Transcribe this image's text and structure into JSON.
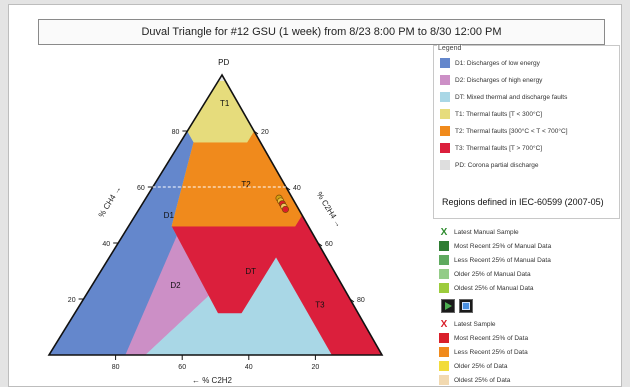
{
  "title": "Duval Triangle for #12 GSU (1 week) from 8/23 8:00 PM to 8/30 12:00 PM",
  "chart_data": {
    "type": "ternary",
    "axes": {
      "left": {
        "label": "% CH4 →",
        "ticks": [
          80,
          60,
          40,
          20
        ]
      },
      "right": {
        "label": "% C2H4 →",
        "ticks": [
          20,
          40,
          60,
          80
        ]
      },
      "bottom": {
        "label": "← % C2H2",
        "ticks": [
          80,
          60,
          40,
          20
        ]
      }
    },
    "zones": [
      {
        "name": "PD",
        "color": "#e6e6e6"
      },
      {
        "name": "T1",
        "color": "#e6dc7c"
      },
      {
        "name": "T2",
        "color": "#f08a1c"
      },
      {
        "name": "T3",
        "color": "#db1f3c"
      },
      {
        "name": "DT",
        "color": "#a9d7e6"
      },
      {
        "name": "D1",
        "color": "#6487cc"
      },
      {
        "name": "D2",
        "color": "#cc8fc6"
      }
    ],
    "samples": [
      {
        "ch4": 56,
        "c2h4": 40,
        "c2h2": 4,
        "color": "#d2a014"
      },
      {
        "ch4": 55,
        "c2h4": 41,
        "c2h2": 4,
        "color": "#e8c040"
      },
      {
        "ch4": 54,
        "c2h4": 42,
        "c2h2": 4,
        "color": "#d91f2a"
      },
      {
        "ch4": 53,
        "c2h4": 43,
        "c2h2": 4,
        "color": "#f0c864"
      },
      {
        "ch4": 52,
        "c2h4": 44,
        "c2h2": 4,
        "color": "#d91f2a"
      }
    ],
    "crosshair": {
      "ch4": 60
    },
    "grid": false
  },
  "legend": {
    "title": "Legend",
    "items": [
      {
        "label": "D1: Discharges of low energy",
        "color": "#6487cc"
      },
      {
        "label": "D2: Discharges of high energy",
        "color": "#cc8fc6"
      },
      {
        "label": "DT: Mixed thermal and discharge faults",
        "color": "#a9d7e6"
      },
      {
        "label": "T1: Thermal faults [T < 300°C]",
        "color": "#e6dc7c"
      },
      {
        "label": "T2: Thermal faults [300°C < T < 700°C]",
        "color": "#f08a1c"
      },
      {
        "label": "T3: Thermal faults [T > 700°C]",
        "color": "#db1f3c"
      },
      {
        "label": "PD: Corona partial discharge",
        "color": "#dedede"
      }
    ],
    "regions_note": "Regions defined in IEC-60599 (2007-05)"
  },
  "manual_samples": {
    "latest_label": "Latest Manual Sample",
    "latest_mark": "X",
    "latest_color": "#2e8b2e",
    "items": [
      {
        "label": "Most Recent 25% of Manual Data",
        "color": "#2e7d32"
      },
      {
        "label": "Less Recent 25% of Manual Data",
        "color": "#5faa5f"
      },
      {
        "label": "Older 25% of Manual Data",
        "color": "#93cc88"
      },
      {
        "label": "Oldest 25% of Manual Data",
        "color": "#9ccc3c"
      }
    ]
  },
  "controls": [
    {
      "name": "play-button",
      "icon": "play-icon"
    },
    {
      "name": "stop-button",
      "icon": "stop-icon"
    }
  ],
  "auto_samples": {
    "latest_label": "Latest Sample",
    "latest_mark": "X",
    "latest_color": "#d91f2a",
    "items": [
      {
        "label": "Most Recent 25% of Data",
        "color": "#d91f2a"
      },
      {
        "label": "Less Recent 25% of Data",
        "color": "#f08a1c"
      },
      {
        "label": "Older 25% of Data",
        "color": "#f2dc3c"
      },
      {
        "label": "Oldest 25% of Data",
        "color": "#f2d9b0"
      }
    ]
  }
}
